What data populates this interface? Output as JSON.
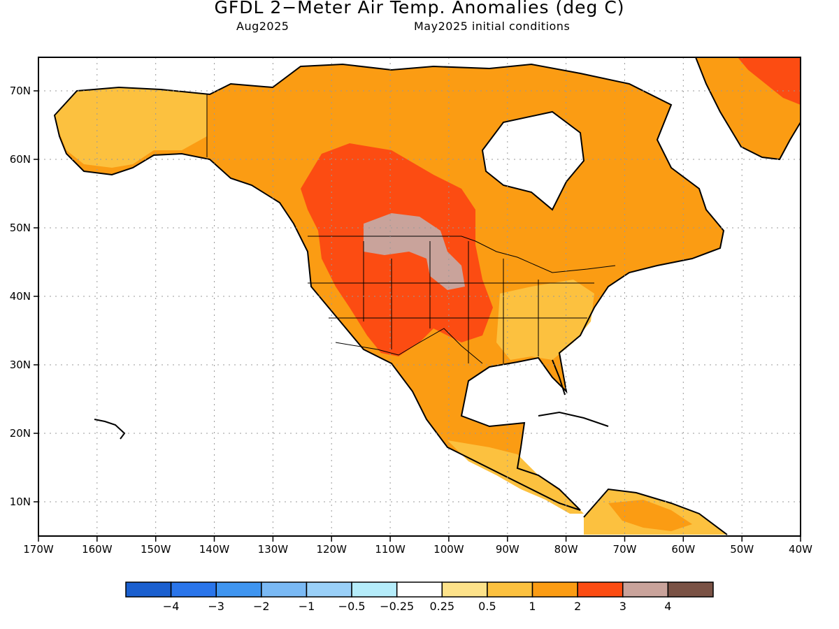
{
  "title": "GFDL 2−Meter Air Temp. Anomalies (deg C)",
  "valid_month": "Aug2025",
  "init_conditions": "May2025 initial conditions",
  "map": {
    "lon_range": [
      -170,
      -40
    ],
    "lat_range": [
      5,
      75
    ],
    "lon_ticks": [
      "170W",
      "160W",
      "150W",
      "140W",
      "130W",
      "120W",
      "110W",
      "100W",
      "90W",
      "80W",
      "70W",
      "60W",
      "50W",
      "40W"
    ],
    "lat_ticks": [
      "10N",
      "20N",
      "30N",
      "40N",
      "50N",
      "60N",
      "70N"
    ],
    "grid": "dotted",
    "colors": {
      "ocean": "#ffffff",
      "land_outline": "#000000",
      "warm_0_5_1": "#fcc13f",
      "warm_1_2": "#fb9c13",
      "warm_2_3": "#fc4c12",
      "warm_3_4": "#c9a39b"
    }
  },
  "colorbar": {
    "labels": [
      "−4",
      "−3",
      "−2",
      "−1",
      "−0.5",
      "−0.25",
      "0.25",
      "0.5",
      "1",
      "2",
      "3",
      "4"
    ],
    "colors": [
      "#1a5fcf",
      "#2a75ea",
      "#3f95f0",
      "#7ab9f4",
      "#9ad0f8",
      "#b5ecfa",
      "#ffffff",
      "#fde28a",
      "#fcc13f",
      "#fb9c13",
      "#fc4c12",
      "#c9a39b",
      "#7a5245"
    ]
  }
}
